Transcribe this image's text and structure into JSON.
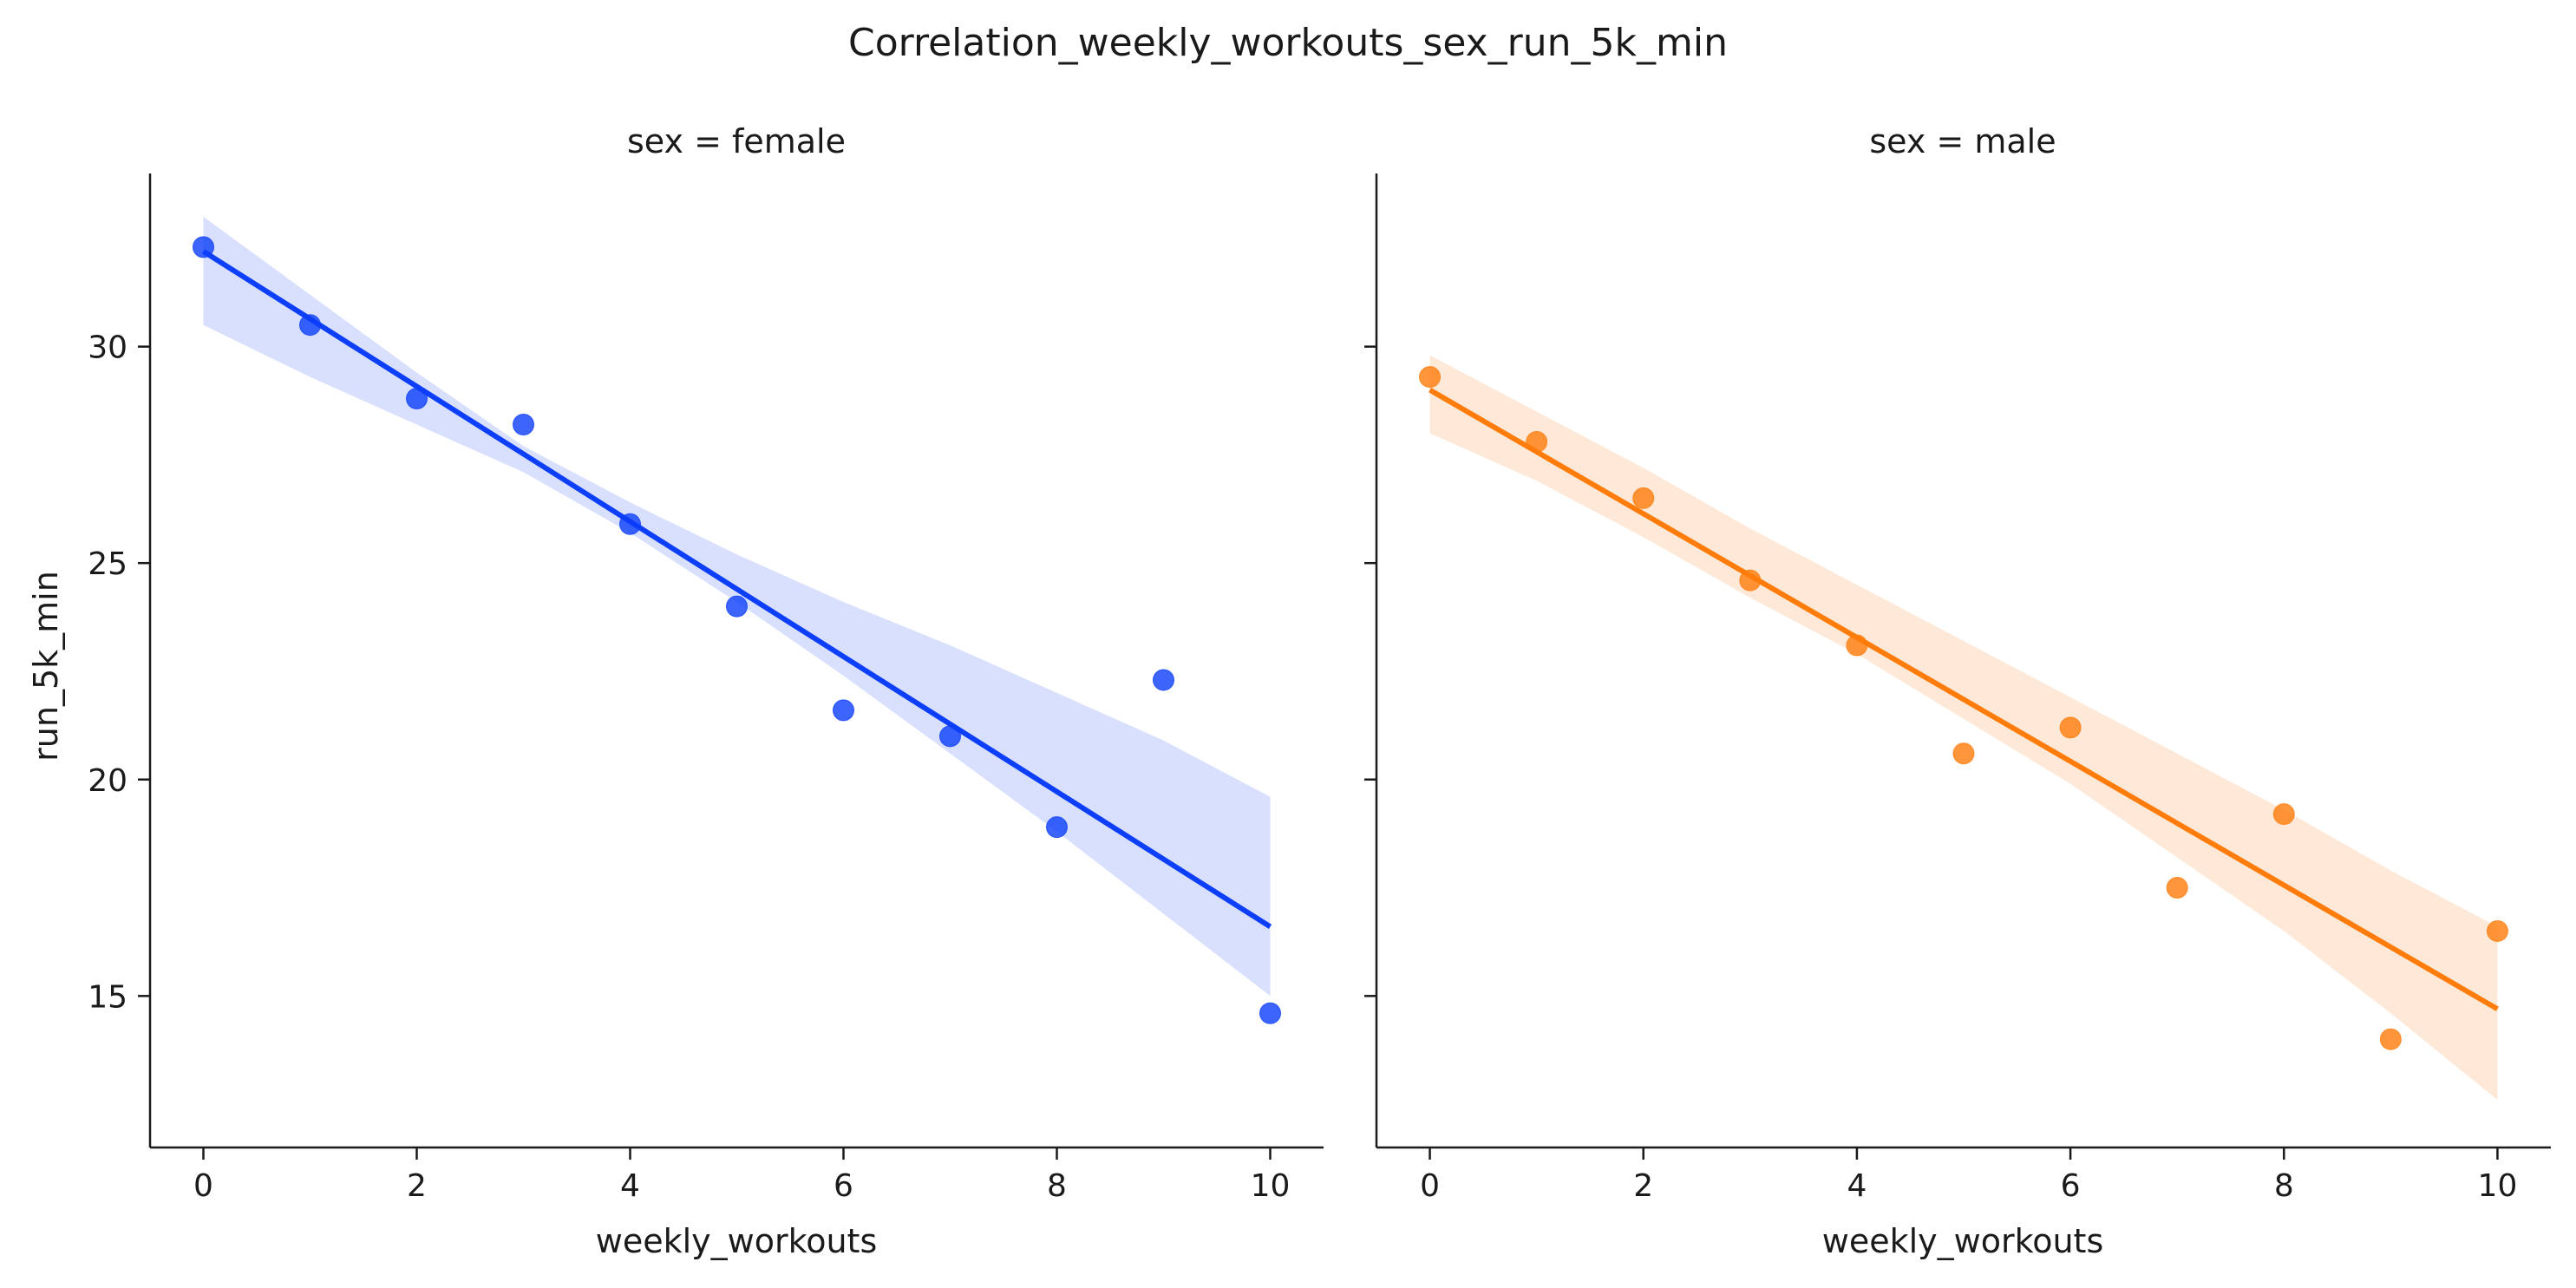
{
  "title": "Correlation_weekly_workouts_sex_run_5k_min",
  "colors": {
    "female": "#0d3efa",
    "female_band": "#d8e0fe",
    "male": "#ff7c0b",
    "male_band": "#fee9d8",
    "axis": "#1a1a1a"
  },
  "chart_data": [
    {
      "type": "scatter",
      "title": "sex = female",
      "xlabel": "weekly_workouts",
      "ylabel": "run_5k_min",
      "xlim": [
        -0.5,
        10.5
      ],
      "ylim": [
        11.5,
        34.0
      ],
      "xticks": [
        0,
        2,
        4,
        6,
        8,
        10
      ],
      "yticks": [
        15,
        20,
        25,
        30
      ],
      "grid": false,
      "points": {
        "x": [
          0,
          1,
          2,
          3,
          4,
          5,
          6,
          7,
          8,
          9,
          10
        ],
        "y": [
          32.3,
          30.5,
          28.8,
          28.2,
          25.9,
          24.0,
          21.6,
          21.0,
          18.9,
          22.3,
          14.6
        ]
      },
      "regression": {
        "x": [
          0,
          10
        ],
        "y": [
          32.2,
          16.6
        ]
      },
      "ci_band": {
        "x": [
          0,
          1,
          2,
          3,
          4,
          5,
          6,
          7,
          8,
          9,
          10
        ],
        "lower": [
          30.5,
          29.3,
          28.2,
          27.1,
          25.7,
          24.1,
          22.4,
          20.6,
          18.8,
          16.9,
          15.0
        ],
        "upper": [
          33.0,
          31.2,
          29.4,
          27.7,
          26.4,
          25.2,
          24.1,
          23.1,
          22.0,
          20.9,
          19.6
        ]
      }
    },
    {
      "type": "scatter",
      "title": "sex = male",
      "xlabel": "weekly_workouts",
      "ylabel": "",
      "xlim": [
        -0.5,
        10.5
      ],
      "ylim": [
        11.5,
        34.0
      ],
      "xticks": [
        0,
        2,
        4,
        6,
        8,
        10
      ],
      "yticks": [
        15,
        20,
        25,
        30
      ],
      "grid": false,
      "points": {
        "x": [
          0,
          1,
          2,
          3,
          4,
          5,
          6,
          7,
          8,
          9,
          10
        ],
        "y": [
          29.3,
          27.8,
          26.5,
          24.6,
          23.1,
          20.6,
          21.2,
          17.5,
          19.2,
          14.0,
          16.5
        ]
      },
      "regression": {
        "x": [
          0,
          10
        ],
        "y": [
          29.0,
          14.7
        ]
      },
      "ci_band": {
        "x": [
          0,
          1,
          2,
          3,
          4,
          5,
          6,
          7,
          8,
          9,
          10
        ],
        "lower": [
          28.0,
          26.9,
          25.6,
          24.2,
          22.9,
          21.4,
          19.9,
          18.2,
          16.5,
          14.6,
          12.6
        ],
        "upper": [
          29.8,
          28.5,
          27.2,
          25.8,
          24.5,
          23.2,
          21.9,
          20.6,
          19.3,
          17.9,
          16.6
        ]
      }
    }
  ]
}
